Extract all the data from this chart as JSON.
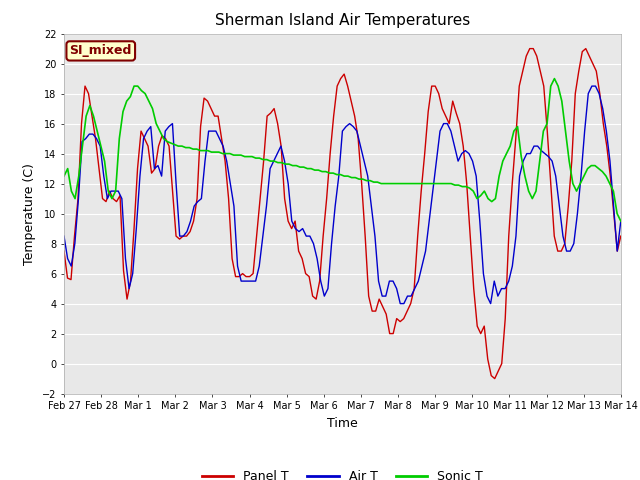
{
  "title": "Sherman Island Air Temperatures",
  "xlabel": "Time",
  "ylabel": "Temperature (C)",
  "ylim": [
    -2,
    22
  ],
  "yticks": [
    -2,
    0,
    2,
    4,
    6,
    8,
    10,
    12,
    14,
    16,
    18,
    20,
    22
  ],
  "xtick_labels": [
    "Feb 27",
    "Feb 28",
    "Mar 1",
    "Mar 2",
    "Mar 3",
    "Mar 4",
    "Mar 5",
    "Mar 6",
    "Mar 7",
    "Mar 8",
    "Mar 9",
    "Mar 10",
    "Mar 11",
    "Mar 12",
    "Mar 13",
    "Mar 14"
  ],
  "xtick_positions": [
    0,
    1,
    2,
    3,
    4,
    5,
    6,
    7,
    8,
    9,
    10,
    11,
    12,
    13,
    14,
    15
  ],
  "background_color": "#ffffff",
  "plot_bg_color": "#e8e8e8",
  "grid_color": "#ffffff",
  "annotation_text": "SI_mixed",
  "annotation_bg": "#ffffcc",
  "annotation_border": "#800000",
  "legend_entries": [
    "Panel T",
    "Air T",
    "Sonic T"
  ],
  "line_colors": [
    "#cc0000",
    "#0000cc",
    "#00cc00"
  ],
  "panel_t": [
    7.5,
    5.7,
    5.6,
    8.5,
    11.0,
    16.0,
    18.5,
    18.0,
    16.5,
    15.0,
    13.0,
    11.0,
    10.8,
    11.5,
    11.0,
    10.8,
    11.2,
    6.2,
    4.3,
    5.5,
    9.0,
    13.0,
    15.5,
    15.0,
    14.5,
    12.7,
    13.0,
    14.5,
    15.2,
    15.0,
    14.5,
    11.5,
    8.5,
    8.3,
    8.5,
    8.5,
    8.8,
    9.5,
    11.0,
    15.8,
    17.7,
    17.5,
    17.0,
    16.5,
    16.5,
    15.0,
    13.5,
    11.0,
    7.0,
    5.8,
    5.8,
    6.0,
    5.8,
    5.8,
    6.0,
    8.5,
    11.0,
    13.5,
    16.5,
    16.7,
    17.0,
    16.0,
    14.5,
    11.0,
    9.5,
    9.0,
    9.5,
    7.5,
    7.0,
    6.0,
    5.8,
    4.5,
    4.3,
    5.5,
    8.5,
    11.0,
    14.0,
    16.5,
    18.5,
    19.0,
    19.3,
    18.5,
    17.5,
    16.5,
    15.0,
    12.0,
    8.5,
    4.5,
    3.5,
    3.5,
    4.3,
    3.8,
    3.3,
    2.0,
    2.0,
    3.0,
    2.8,
    3.0,
    3.5,
    4.0,
    5.0,
    8.5,
    11.5,
    14.0,
    16.8,
    18.5,
    18.5,
    18.0,
    17.0,
    16.5,
    16.0,
    17.5,
    16.7,
    16.0,
    14.5,
    12.0,
    8.5,
    5.0,
    2.5,
    2.0,
    2.5,
    0.3,
    -0.8,
    -1.0,
    -0.5,
    0.0,
    3.0,
    8.5,
    12.0,
    15.0,
    18.5,
    19.5,
    20.5,
    21.0,
    21.0,
    20.5,
    19.5,
    18.5,
    15.5,
    12.0,
    8.5,
    7.5,
    7.5,
    8.0,
    10.5,
    13.5,
    18.0,
    19.5,
    20.8,
    21.0,
    20.5,
    20.0,
    19.5,
    18.0,
    16.0,
    14.5,
    12.5,
    10.0,
    7.5,
    8.5
  ],
  "air_t": [
    8.5,
    7.0,
    6.5,
    8.0,
    11.0,
    14.8,
    15.0,
    15.3,
    15.3,
    15.0,
    14.5,
    12.5,
    11.0,
    11.5,
    11.5,
    11.5,
    11.0,
    7.0,
    5.0,
    6.0,
    9.0,
    12.5,
    15.0,
    15.5,
    15.8,
    13.0,
    13.2,
    12.5,
    15.5,
    15.8,
    16.0,
    12.0,
    8.5,
    8.5,
    8.8,
    9.5,
    10.5,
    10.8,
    11.0,
    13.5,
    15.5,
    15.5,
    15.5,
    15.0,
    14.5,
    13.5,
    12.0,
    10.5,
    6.5,
    5.5,
    5.5,
    5.5,
    5.5,
    5.5,
    6.5,
    8.5,
    10.5,
    13.0,
    13.5,
    14.0,
    14.5,
    13.5,
    12.0,
    9.5,
    9.0,
    8.8,
    9.0,
    8.5,
    8.5,
    8.0,
    7.0,
    5.5,
    4.5,
    5.0,
    8.0,
    10.5,
    12.5,
    15.5,
    15.8,
    16.0,
    15.8,
    15.5,
    14.5,
    13.5,
    12.5,
    10.5,
    8.5,
    5.5,
    4.5,
    4.5,
    5.5,
    5.5,
    5.0,
    4.0,
    4.0,
    4.5,
    4.5,
    5.0,
    5.5,
    6.5,
    7.5,
    9.5,
    11.5,
    13.5,
    15.5,
    16.0,
    16.0,
    15.5,
    14.5,
    13.5,
    14.0,
    14.2,
    14.0,
    13.5,
    12.5,
    9.5,
    6.0,
    4.5,
    4.0,
    5.5,
    4.5,
    5.0,
    5.0,
    5.5,
    6.5,
    8.5,
    12.5,
    13.5,
    14.0,
    14.0,
    14.5,
    14.5,
    14.2,
    14.0,
    13.8,
    13.5,
    12.5,
    10.5,
    8.5,
    7.5,
    7.5,
    8.0,
    10.0,
    12.5,
    15.5,
    18.0,
    18.5,
    18.5,
    18.0,
    17.0,
    15.5,
    13.5,
    10.5,
    7.5,
    9.5
  ],
  "sonic_t": [
    12.5,
    13.0,
    11.5,
    11.0,
    12.5,
    14.5,
    16.5,
    17.2,
    16.5,
    15.5,
    14.5,
    13.5,
    11.5,
    11.0,
    11.5,
    15.0,
    16.8,
    17.5,
    17.8,
    18.5,
    18.5,
    18.2,
    18.0,
    17.5,
    17.0,
    16.0,
    15.5,
    15.0,
    14.8,
    14.7,
    14.6,
    14.5,
    14.5,
    14.4,
    14.4,
    14.3,
    14.3,
    14.2,
    14.2,
    14.2,
    14.1,
    14.1,
    14.1,
    14.0,
    14.0,
    14.0,
    13.9,
    13.9,
    13.9,
    13.8,
    13.8,
    13.8,
    13.7,
    13.7,
    13.6,
    13.6,
    13.5,
    13.5,
    13.4,
    13.4,
    13.3,
    13.3,
    13.2,
    13.2,
    13.1,
    13.1,
    13.0,
    13.0,
    12.9,
    12.9,
    12.8,
    12.8,
    12.7,
    12.7,
    12.6,
    12.6,
    12.5,
    12.5,
    12.4,
    12.4,
    12.3,
    12.3,
    12.2,
    12.2,
    12.1,
    12.1,
    12.0,
    12.0,
    12.0,
    12.0,
    12.0,
    12.0,
    12.0,
    12.0,
    12.0,
    12.0,
    12.0,
    12.0,
    12.0,
    12.0,
    12.0,
    12.0,
    12.0,
    12.0,
    12.0,
    12.0,
    11.9,
    11.9,
    11.8,
    11.8,
    11.7,
    11.5,
    11.0,
    11.2,
    11.5,
    11.0,
    10.8,
    11.0,
    12.5,
    13.5,
    14.0,
    14.5,
    15.5,
    15.8,
    13.8,
    12.5,
    11.5,
    11.0,
    11.5,
    13.5,
    15.5,
    16.0,
    18.5,
    19.0,
    18.5,
    17.5,
    15.5,
    13.5,
    12.0,
    11.5,
    12.0,
    12.5,
    13.0,
    13.2,
    13.2,
    13.0,
    12.8,
    12.5,
    12.0,
    11.5,
    10.0,
    9.5
  ]
}
